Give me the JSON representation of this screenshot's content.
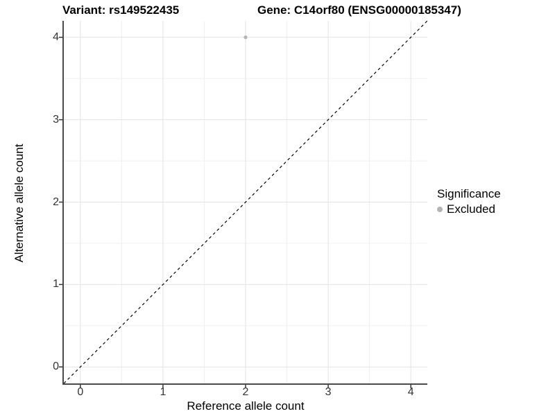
{
  "titles": {
    "left": "Variant: rs149522435",
    "right": "Gene: C14orf80 (ENSG00000185347)"
  },
  "chart_data": {
    "type": "scatter",
    "title": "Variant: rs149522435   Gene: C14orf80 (ENSG00000185347)",
    "xlabel": "Reference allele count",
    "ylabel": "Alternative allele count",
    "xlim": [
      -0.2,
      4.2
    ],
    "ylim": [
      -0.2,
      4.2
    ],
    "x_ticks": [
      0,
      1,
      2,
      3,
      4
    ],
    "y_ticks": [
      0,
      1,
      2,
      3,
      4
    ],
    "minor_grid_step": 0.5,
    "grid": true,
    "legend_position": "right",
    "series": [
      {
        "name": "Excluded",
        "color": "#b4b4b4",
        "points": [
          {
            "x": 2,
            "y": 4
          }
        ]
      }
    ],
    "reference_line": {
      "description": "identity line y = x",
      "style": "dashed",
      "color": "#000000",
      "from": [
        -0.2,
        -0.2
      ],
      "to": [
        4.2,
        4.2
      ]
    },
    "legend": {
      "title": "Significance",
      "entries": [
        {
          "label": "Excluded",
          "color": "#b4b4b4"
        }
      ]
    }
  },
  "colors": {
    "background": "#ffffff",
    "grid_major": "#e3e3e3",
    "grid_minor": "#f0f0f0",
    "axis_line": "#4a4a4a",
    "tick_mark": "#333333",
    "point": "#b4b4b4"
  }
}
